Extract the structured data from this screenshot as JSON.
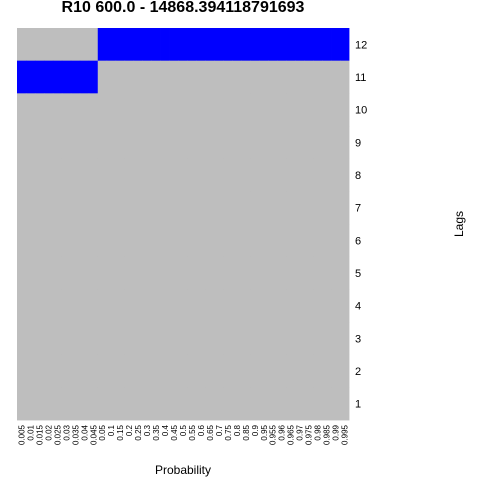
{
  "chart_data": {
    "type": "heatmap",
    "title": "R10 600.0 - 14868.394118791693",
    "xlabel": "Probability",
    "ylabel": "Lags",
    "x_categories": [
      "0.005",
      "0.01",
      "0.015",
      "0.02",
      "0.025",
      "0.03",
      "0.035",
      "0.04",
      "0.045",
      "0.05",
      "0.1",
      "0.15",
      "0.2",
      "0.25",
      "0.3",
      "0.35",
      "0.4",
      "0.45",
      "0.5",
      "0.55",
      "0.6",
      "0.65",
      "0.7",
      "0.75",
      "0.8",
      "0.85",
      "0.9",
      "0.95",
      "0.955",
      "0.96",
      "0.965",
      "0.97",
      "0.975",
      "0.98",
      "0.985",
      "0.99",
      "0.995"
    ],
    "y_categories": [
      "1",
      "2",
      "3",
      "4",
      "5",
      "6",
      "7",
      "8",
      "9",
      "10",
      "11",
      "12"
    ],
    "colors": {
      "off": "#bebebe",
      "on": "#0000ff"
    },
    "rows": [
      {
        "lag": "12",
        "values": [
          0,
          0,
          0,
          0,
          0,
          0,
          0,
          0,
          0,
          1,
          1,
          1,
          1,
          1,
          1,
          1,
          1,
          1,
          1,
          1,
          1,
          1,
          1,
          1,
          1,
          1,
          1,
          1,
          1,
          1,
          1,
          1,
          1,
          1,
          1,
          1,
          1
        ]
      },
      {
        "lag": "11",
        "values": [
          1,
          1,
          1,
          1,
          1,
          1,
          1,
          1,
          1,
          0,
          0,
          0,
          0,
          0,
          0,
          0,
          0,
          0,
          0,
          0,
          0,
          0,
          0,
          0,
          0,
          0,
          0,
          0,
          0,
          0,
          0,
          0,
          0,
          0,
          0,
          0,
          0
        ]
      },
      {
        "lag": "10",
        "values": [
          0,
          0,
          0,
          0,
          0,
          0,
          0,
          0,
          0,
          0,
          0,
          0,
          0,
          0,
          0,
          0,
          0,
          0,
          0,
          0,
          0,
          0,
          0,
          0,
          0,
          0,
          0,
          0,
          0,
          0,
          0,
          0,
          0,
          0,
          0,
          0,
          0
        ]
      },
      {
        "lag": "9",
        "values": [
          0,
          0,
          0,
          0,
          0,
          0,
          0,
          0,
          0,
          0,
          0,
          0,
          0,
          0,
          0,
          0,
          0,
          0,
          0,
          0,
          0,
          0,
          0,
          0,
          0,
          0,
          0,
          0,
          0,
          0,
          0,
          0,
          0,
          0,
          0,
          0,
          0
        ]
      },
      {
        "lag": "8",
        "values": [
          0,
          0,
          0,
          0,
          0,
          0,
          0,
          0,
          0,
          0,
          0,
          0,
          0,
          0,
          0,
          0,
          0,
          0,
          0,
          0,
          0,
          0,
          0,
          0,
          0,
          0,
          0,
          0,
          0,
          0,
          0,
          0,
          0,
          0,
          0,
          0,
          0
        ]
      },
      {
        "lag": "7",
        "values": [
          0,
          0,
          0,
          0,
          0,
          0,
          0,
          0,
          0,
          0,
          0,
          0,
          0,
          0,
          0,
          0,
          0,
          0,
          0,
          0,
          0,
          0,
          0,
          0,
          0,
          0,
          0,
          0,
          0,
          0,
          0,
          0,
          0,
          0,
          0,
          0,
          0
        ]
      },
      {
        "lag": "6",
        "values": [
          0,
          0,
          0,
          0,
          0,
          0,
          0,
          0,
          0,
          0,
          0,
          0,
          0,
          0,
          0,
          0,
          0,
          0,
          0,
          0,
          0,
          0,
          0,
          0,
          0,
          0,
          0,
          0,
          0,
          0,
          0,
          0,
          0,
          0,
          0,
          0,
          0
        ]
      },
      {
        "lag": "5",
        "values": [
          0,
          0,
          0,
          0,
          0,
          0,
          0,
          0,
          0,
          0,
          0,
          0,
          0,
          0,
          0,
          0,
          0,
          0,
          0,
          0,
          0,
          0,
          0,
          0,
          0,
          0,
          0,
          0,
          0,
          0,
          0,
          0,
          0,
          0,
          0,
          0,
          0
        ]
      },
      {
        "lag": "4",
        "values": [
          0,
          0,
          0,
          0,
          0,
          0,
          0,
          0,
          0,
          0,
          0,
          0,
          0,
          0,
          0,
          0,
          0,
          0,
          0,
          0,
          0,
          0,
          0,
          0,
          0,
          0,
          0,
          0,
          0,
          0,
          0,
          0,
          0,
          0,
          0,
          0,
          0
        ]
      },
      {
        "lag": "3",
        "values": [
          0,
          0,
          0,
          0,
          0,
          0,
          0,
          0,
          0,
          0,
          0,
          0,
          0,
          0,
          0,
          0,
          0,
          0,
          0,
          0,
          0,
          0,
          0,
          0,
          0,
          0,
          0,
          0,
          0,
          0,
          0,
          0,
          0,
          0,
          0,
          0,
          0
        ]
      },
      {
        "lag": "2",
        "values": [
          0,
          0,
          0,
          0,
          0,
          0,
          0,
          0,
          0,
          0,
          0,
          0,
          0,
          0,
          0,
          0,
          0,
          0,
          0,
          0,
          0,
          0,
          0,
          0,
          0,
          0,
          0,
          0,
          0,
          0,
          0,
          0,
          0,
          0,
          0,
          0,
          0
        ]
      },
      {
        "lag": "1",
        "values": [
          0,
          0,
          0,
          0,
          0,
          0,
          0,
          0,
          0,
          0,
          0,
          0,
          0,
          0,
          0,
          0,
          0,
          0,
          0,
          0,
          0,
          0,
          0,
          0,
          0,
          0,
          0,
          0,
          0,
          0,
          0,
          0,
          0,
          0,
          0,
          0,
          0
        ]
      }
    ],
    "legend": "none",
    "grid": false
  }
}
